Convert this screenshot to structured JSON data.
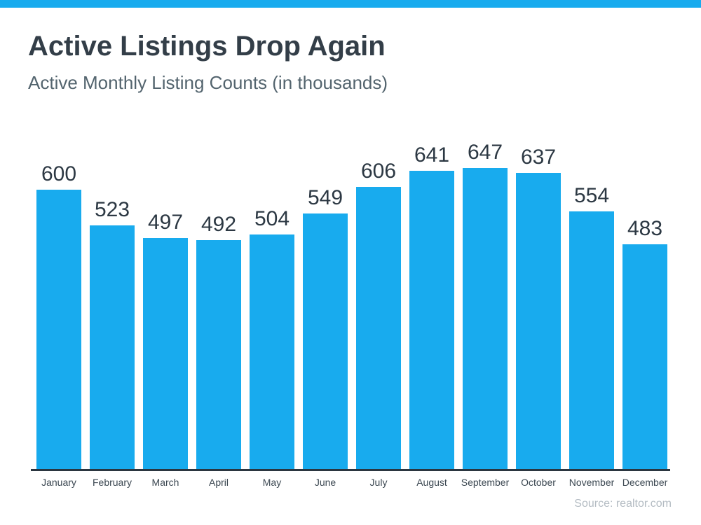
{
  "accent_color": "#18abee",
  "header": {
    "title": "Active Listings Drop Again",
    "subtitle": "Active Monthly Listing Counts (in thousands)"
  },
  "chart_data": {
    "type": "bar",
    "title": "Active Listings Drop Again",
    "subtitle": "Active Monthly Listing Counts (in thousands)",
    "categories": [
      "January",
      "February",
      "March",
      "April",
      "May",
      "June",
      "July",
      "August",
      "September",
      "October",
      "November",
      "December"
    ],
    "values": [
      600,
      523,
      497,
      492,
      504,
      549,
      606,
      641,
      647,
      637,
      554,
      483
    ],
    "xlabel": "",
    "ylabel": "",
    "ylim": [
      0,
      647
    ],
    "grid": false,
    "legend": "none",
    "data_labels": true,
    "bar_color": "#18abee",
    "value_label_color": "#2c3843",
    "axis_label_color": "#3b4751",
    "axis_line_color": "#2b3640"
  },
  "footer": {
    "source": "Source: realtor.com"
  }
}
